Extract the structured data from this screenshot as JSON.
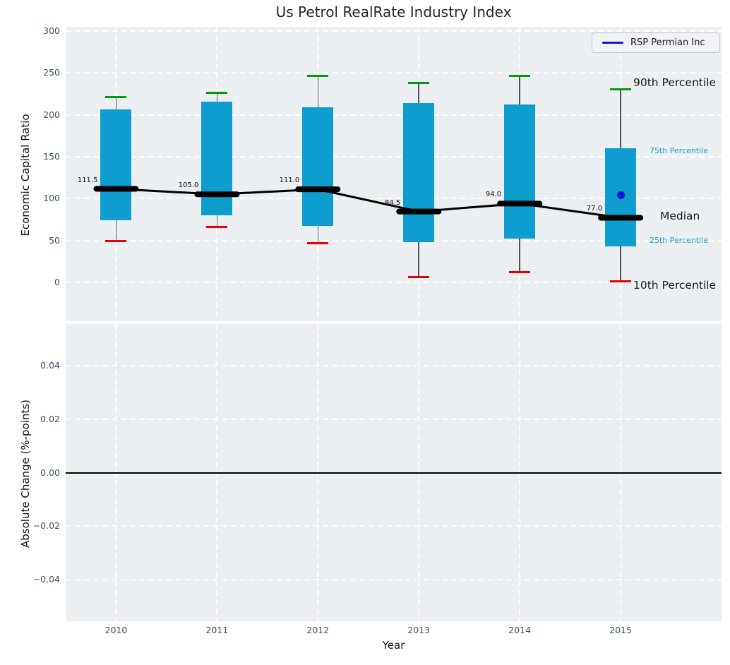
{
  "chart_data": [
    {
      "type": "boxplot",
      "title": "Us Petrol RealRate Industry Index",
      "ylabel": "Economic Capital Ratio",
      "xlabel": "Year",
      "x": [
        2010,
        2011,
        2012,
        2013,
        2014,
        2015
      ],
      "x_ticklabels": [
        "2010",
        "2011",
        "2012",
        "2013",
        "2014",
        "2015"
      ],
      "yticks": [
        0,
        50,
        100,
        150,
        200,
        250,
        300
      ],
      "ylim": [
        -46.5,
        305
      ],
      "xlim": [
        2009.5,
        2016.0
      ],
      "grid": true,
      "legend_position": "upper right",
      "legend": [
        {
          "label": "RSP Permian Inc",
          "color": "#1414d9"
        }
      ],
      "series": [
        {
          "name": "10th Percentile",
          "values": [
            49,
            66,
            47,
            6,
            12,
            1
          ]
        },
        {
          "name": "25th Percentile",
          "values": [
            74,
            80,
            67,
            48,
            52,
            43
          ]
        },
        {
          "name": "Median",
          "values": [
            111.5,
            105.0,
            111.0,
            84.5,
            94.0,
            77.0
          ]
        },
        {
          "name": "75th Percentile",
          "values": [
            206,
            216,
            209,
            214,
            212,
            160
          ]
        },
        {
          "name": "90th Percentile",
          "values": [
            221,
            226,
            246,
            238,
            246,
            230
          ]
        },
        {
          "name": "RSP Permian Inc",
          "values": [
            null,
            null,
            null,
            null,
            null,
            104
          ]
        }
      ],
      "median_labels": [
        "111.5",
        "105.0",
        "111.0",
        "84.5",
        "94.0",
        "77.0"
      ],
      "percentile_annotations": [
        {
          "text": "90th Percentile",
          "style": "large",
          "anchor": "90th Percentile"
        },
        {
          "text": "75th Percentile",
          "style": "small",
          "anchor": "75th Percentile"
        },
        {
          "text": "Median",
          "style": "large",
          "anchor": "Median"
        },
        {
          "text": "25th Percentile",
          "style": "small",
          "anchor": "25th Percentile"
        },
        {
          "text": "10th Percentile",
          "style": "large",
          "anchor": "10th Percentile"
        }
      ],
      "colors": {
        "box": "#0d9dce",
        "cap_top": "#009a0a",
        "cap_bottom": "#e60000",
        "median_line": "#000000",
        "whisker": "#555555",
        "company_point": "#1414d9",
        "annotation_small": "#1b9ed3",
        "axes_background": "#eceff1",
        "gridline": "#ffffff"
      }
    },
    {
      "type": "empty",
      "ylabel": "Absolute Change (%-points)",
      "xlabel": "Year",
      "ytick_labels": [
        "0.04",
        "0.02",
        "0.00",
        "−0.02",
        "−0.04"
      ],
      "yticks": [
        0.04,
        0.02,
        0.0,
        -0.02,
        -0.04
      ],
      "ylim": [
        -0.0555,
        0.0555
      ],
      "zero_line": 0.0,
      "grid": true
    }
  ]
}
